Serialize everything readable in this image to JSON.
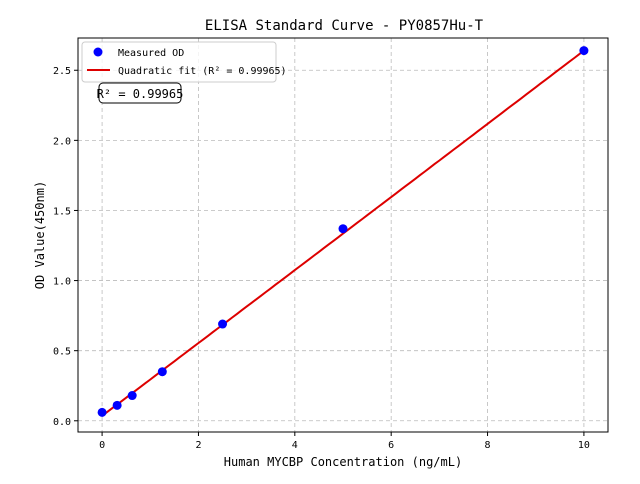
{
  "chart_data": {
    "type": "scatter",
    "title": "ELISA Standard Curve - PY0857Hu-T",
    "xlabel": "Human MYCBP Concentration (ng/mL)",
    "ylabel": "OD Value(450nm)",
    "xlim": [
      -0.5,
      10.5
    ],
    "ylim": [
      -0.08,
      2.73
    ],
    "xticks": [
      0,
      2,
      4,
      6,
      8,
      10
    ],
    "yticks": [
      0.0,
      0.5,
      1.0,
      1.5,
      2.0,
      2.5
    ],
    "ytick_labels": [
      "0.0",
      "0.5",
      "1.0",
      "1.5",
      "2.0",
      "2.5"
    ],
    "grid": true,
    "legend_position": "top-left",
    "series": [
      {
        "name": "Measured OD",
        "kind": "scatter",
        "color": "#0000ff",
        "x": [
          0,
          0.3125,
          0.625,
          1.25,
          2.5,
          5,
          10
        ],
        "y": [
          0.06,
          0.11,
          0.18,
          0.35,
          0.69,
          1.37,
          2.64
        ]
      },
      {
        "name": "Quadratic fit (R² = 0.99965)",
        "kind": "line",
        "color": "#dd0000",
        "coefficients": {
          "a": 0.0001,
          "b": 0.2595,
          "c": 0.035
        },
        "x_range": [
          0,
          10
        ]
      }
    ],
    "annotation": "R² = 0.99965"
  }
}
